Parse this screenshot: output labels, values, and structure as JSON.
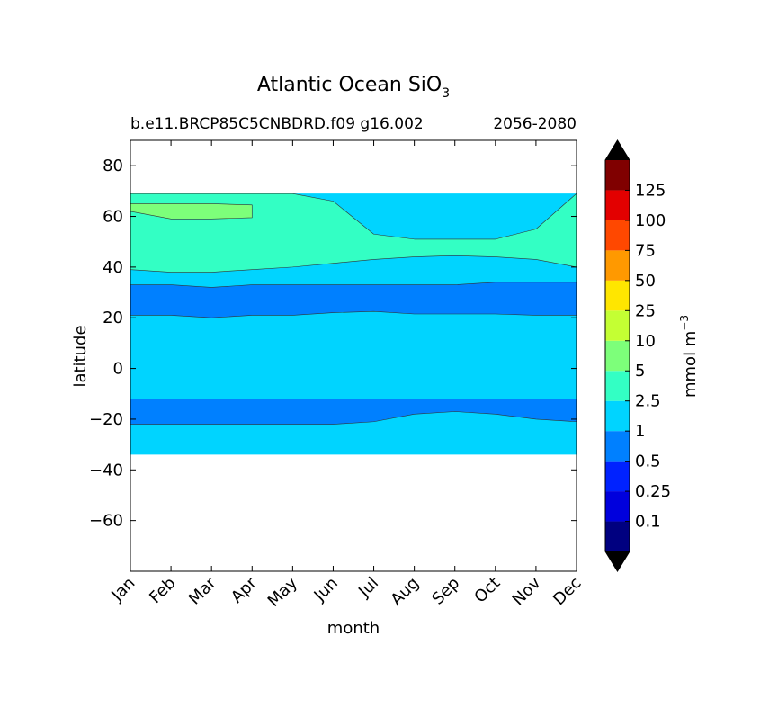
{
  "chart_data": {
    "type": "contour",
    "title": "Atlantic Ocean SiO",
    "title_subscript": "3",
    "subtitle_left": "b.e11.BRCP85C5CNBDRD.f09 g16.002",
    "subtitle_right": "2056-2080",
    "xlabel": "month",
    "ylabel": "latitude",
    "x_categories": [
      "Jan",
      "Feb",
      "Mar",
      "Apr",
      "May",
      "Jun",
      "Jul",
      "Aug",
      "Sep",
      "Oct",
      "Nov",
      "Dec"
    ],
    "xlim": [
      1,
      12
    ],
    "ylim": [
      -80,
      90
    ],
    "yticks": [
      -60,
      -40,
      -20,
      0,
      20,
      40,
      60,
      80
    ],
    "ytick_labels": [
      "−60",
      "−40",
      "−20",
      "0",
      "20",
      "40",
      "60",
      "80"
    ],
    "data_lat_range": [
      -34,
      69
    ],
    "colorbar": {
      "label": "mmol m",
      "label_exponent": "−3",
      "levels": [
        "0.1",
        "0.25",
        "0.5",
        "1",
        "2.5",
        "5",
        "10",
        "25",
        "50",
        "75",
        "100",
        "125"
      ],
      "colors": [
        "#000080",
        "#0000dd",
        "#0022ff",
        "#0080ff",
        "#00d4ff",
        "#33ffc4",
        "#7dff7a",
        "#c4ff33",
        "#ffe600",
        "#ff9900",
        "#ff4800",
        "#e30000",
        "#800000"
      ],
      "extend_low_color": "#000000",
      "extend_high_color": "#000000"
    },
    "regions": [
      {
        "level_range": "1-2.5",
        "description": "background",
        "color": "#00d4ff",
        "lat_lower_by_month": [
          -34,
          -34,
          -34,
          -34,
          -34,
          -34,
          -34,
          -34,
          -34,
          -34,
          -34,
          -34
        ],
        "lat_upper_by_month": [
          69,
          69,
          69,
          69,
          69,
          69,
          69,
          69,
          69,
          69,
          69,
          69
        ]
      },
      {
        "level_range": "2.5-5",
        "description": "north band",
        "color": "#33ffc4",
        "lat_lower_by_month": [
          39,
          38,
          38,
          39,
          40,
          41.5,
          43,
          44,
          44.5,
          44,
          43,
          40
        ],
        "lat_upper_by_month": [
          69,
          69,
          69,
          69,
          69,
          66,
          53,
          51,
          51,
          51,
          55,
          69
        ]
      },
      {
        "level_range": "5-10",
        "description": "north patch",
        "color": "#7dff7a",
        "lat_lower_by_month": [
          62,
          59,
          59,
          59.5
        ],
        "lat_upper_by_month": [
          65,
          65,
          65,
          64.5
        ]
      },
      {
        "level_range": "0.5-1",
        "description": "northern tropical band",
        "color": "#0080ff",
        "lat_lower_by_month": [
          21,
          21,
          20,
          21,
          21,
          22,
          22.5,
          21.5,
          21.5,
          21.5,
          21,
          21
        ],
        "lat_upper_by_month": [
          33,
          33,
          32,
          33,
          33,
          33,
          33,
          33,
          33,
          34,
          34,
          34
        ]
      },
      {
        "level_range": "0.5-1",
        "description": "southern band",
        "color": "#0080ff",
        "lat_lower_by_month": [
          -22,
          -22,
          -22,
          -22,
          -22,
          -22,
          -21,
          -18,
          -17,
          -18,
          -20,
          -21
        ],
        "lat_upper_by_month": [
          -12,
          -12,
          -12,
          -12,
          -12,
          -12,
          -12,
          -12,
          -12,
          -12,
          -12,
          -12
        ]
      }
    ]
  }
}
